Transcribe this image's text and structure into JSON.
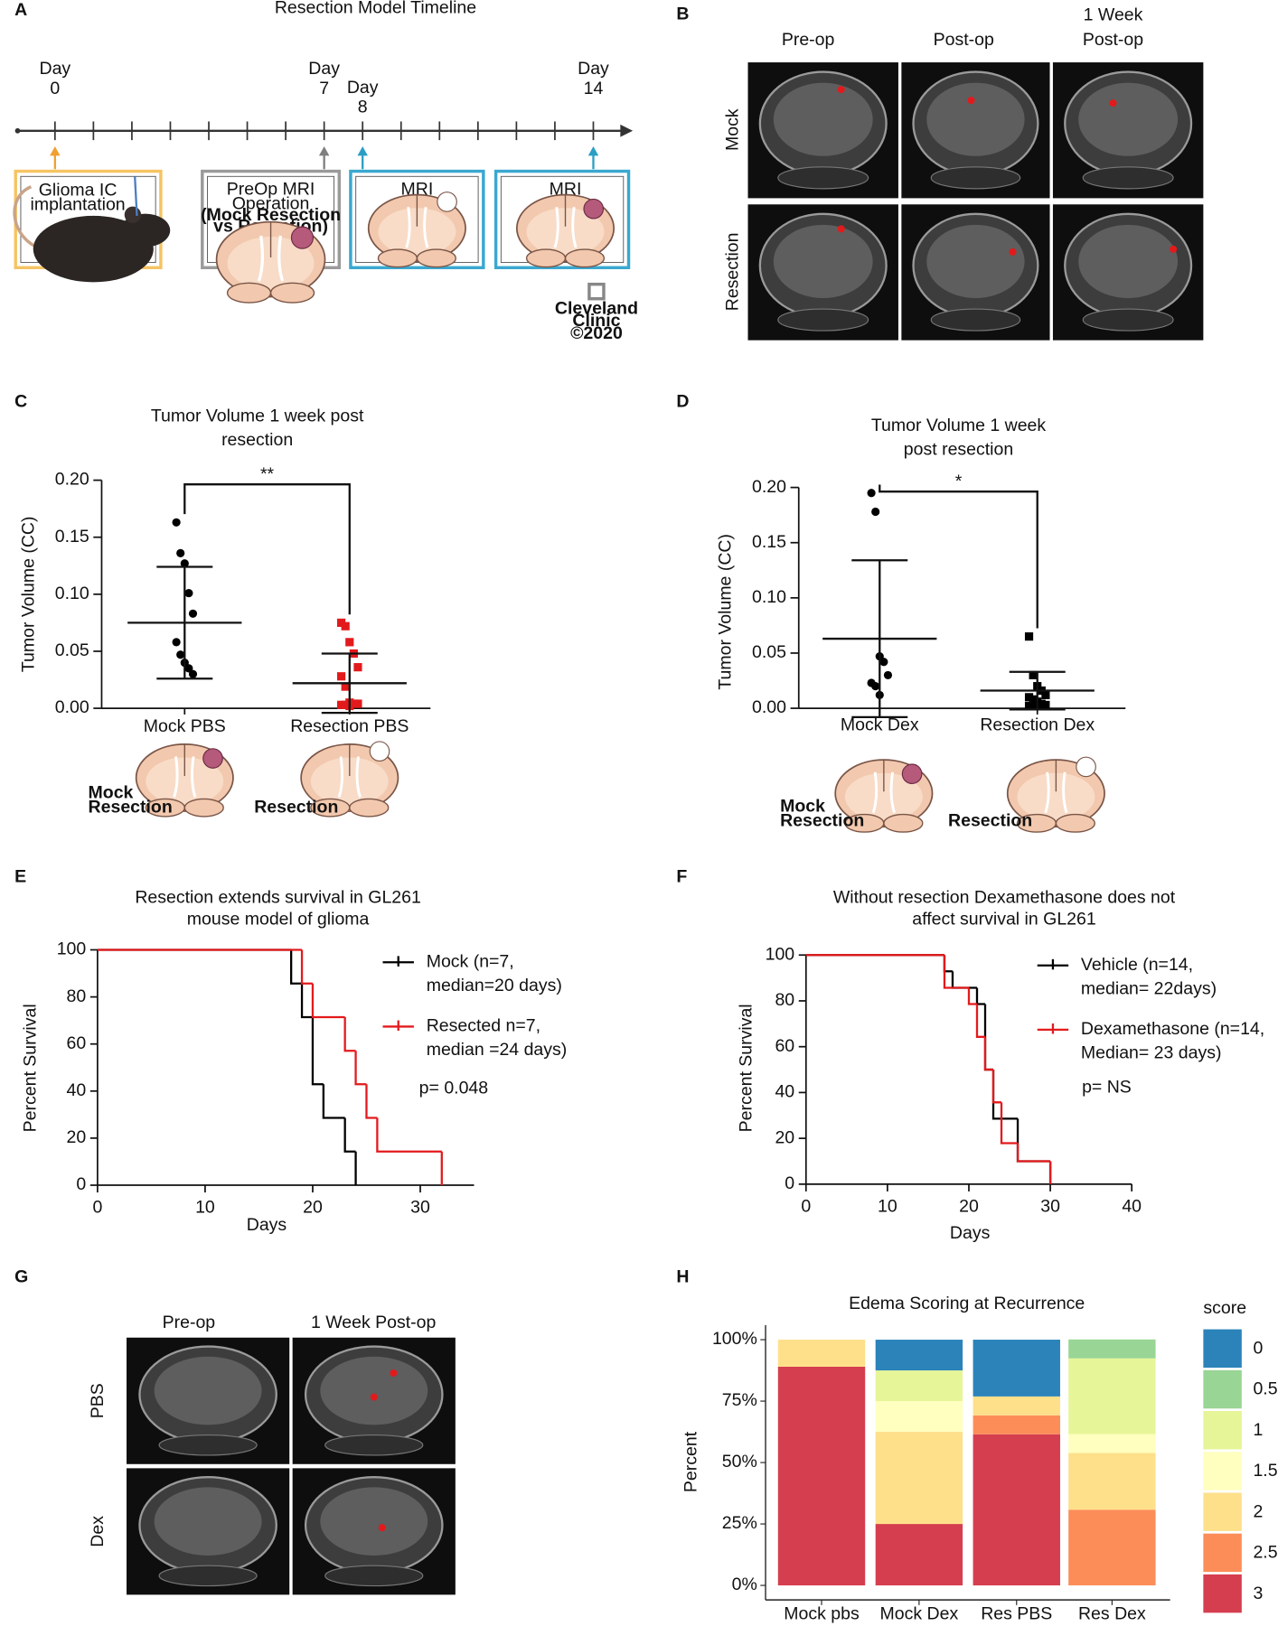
{
  "panel_labels": [
    "A",
    "B",
    "C",
    "D",
    "E",
    "F",
    "G",
    "H"
  ],
  "timeline": {
    "title": "Resection Model Timeline",
    "markers": [
      {
        "label": "Day",
        "day": 0
      },
      {
        "label": "Day",
        "day": 7
      },
      {
        "label": "Day",
        "day": 8
      },
      {
        "label": "Day",
        "day": 14
      }
    ],
    "boxes": [
      [
        "Glioma IC",
        "implantation"
      ],
      [
        "PreOp MRI",
        "Operation"
      ],
      [
        "MRI"
      ],
      [
        "MRI"
      ]
    ],
    "box_note": [
      "(Mock Resection",
      "vs Resection)"
    ],
    "credit": [
      "Cleveland",
      "Clinic",
      "©2020"
    ]
  },
  "mri_b": {
    "columns": [
      [
        "Pre-op"
      ],
      [
        "Post-op"
      ],
      [
        "1 Week",
        "Post-op"
      ]
    ],
    "rows": [
      "Mock",
      "Resection"
    ]
  },
  "mri_g": {
    "columns": [
      "Pre-op",
      "1 Week Post-op"
    ],
    "rows": [
      "PBS",
      "Dex"
    ]
  },
  "chart_data": [
    {
      "type": "dot",
      "title": [
        "Tumor Volume 1 week post",
        "resection"
      ],
      "y_label": "Tumor Volume (CC)",
      "categories": [
        "Mock PBS",
        "Resection PBS"
      ],
      "values": [
        [
          0.163,
          0.136,
          0.127,
          0.101,
          0.083,
          0.058,
          0.047,
          0.04,
          0.035,
          0.03
        ],
        [
          0.075,
          0.072,
          0.058,
          0.048,
          0.036,
          0.028,
          0.019,
          0.005,
          0.004,
          0.004,
          0.003,
          0.003,
          0.002
        ]
      ],
      "means": [
        0.075,
        0.022
      ],
      "errors": [
        0.049,
        0.026
      ],
      "colors": [
        "#000000",
        "#e31a1c"
      ],
      "markers": [
        "circle",
        "square"
      ],
      "significance": "**",
      "ylim": [
        0,
        0.2
      ],
      "yticks": [
        {
          "value": 0,
          "label": "0.00"
        },
        0.05,
        {
          "value": 0.1,
          "label": "0.10"
        },
        0.15,
        {
          "value": 0.2,
          "label": "0.20"
        }
      ],
      "illustration_labels": [
        [
          "Mock",
          "Resection"
        ],
        [
          "Resection"
        ]
      ]
    },
    {
      "type": "dot",
      "title": [
        "Tumor Volume 1 week",
        "post resection"
      ],
      "y_label": "Tumor Volume (CC)",
      "categories": [
        "Mock Dex",
        "Resection Dex"
      ],
      "values": [
        [
          0.195,
          0.178,
          0.047,
          0.042,
          0.03,
          0.023,
          0.02,
          0.012
        ],
        [
          0.065,
          0.03,
          0.02,
          0.016,
          0.012,
          0.01,
          0.008,
          0.006,
          0.004,
          0.003,
          0.002,
          0.002
        ]
      ],
      "means": [
        0.063,
        0.016
      ],
      "errors": [
        0.071,
        0.017
      ],
      "colors": [
        "#000000",
        "#000000"
      ],
      "markers": [
        "circle",
        "square"
      ],
      "significance": "*",
      "ylim": [
        0,
        0.2
      ],
      "yticks": [
        {
          "value": 0,
          "label": "0.00"
        },
        0.05,
        {
          "value": 0.1,
          "label": "0.10"
        },
        0.15,
        {
          "value": 0.2,
          "label": "0.20"
        }
      ],
      "illustration_labels": [
        [
          "Mock",
          "Resection"
        ],
        [
          "Resection"
        ]
      ]
    },
    {
      "type": "step",
      "title": [
        "Resection extends survival in GL261",
        "mouse model of glioma"
      ],
      "x_label": "Days",
      "y_label": "Percent Survival",
      "series": [
        {
          "name": [
            "Mock (n=7,",
            "median=20 days)"
          ],
          "color": "#000000",
          "x": [
            0,
            18,
            19,
            20,
            21,
            23,
            24
          ],
          "values": [
            100,
            85.7,
            71.4,
            42.9,
            28.6,
            14.3,
            0
          ]
        },
        {
          "name": [
            "Resected n=7,",
            "median =24 days)"
          ],
          "color": "#e31a1c",
          "x": [
            0,
            19,
            20,
            23,
            24,
            25,
            26,
            32
          ],
          "values": [
            100,
            85.7,
            71.4,
            57.1,
            42.9,
            28.6,
            14.3,
            0
          ]
        }
      ],
      "annotation": "p= 0.048",
      "xlim": [
        0,
        35
      ],
      "xticks": [
        0,
        10,
        20,
        30
      ],
      "ylim": [
        0,
        100
      ],
      "yticks": [
        0,
        20,
        40,
        60,
        80,
        100
      ]
    },
    {
      "type": "step",
      "title": [
        "Without resection Dexamethasone does not",
        "affect survival in GL261"
      ],
      "x_label": "Days",
      "y_label": "Percent Survival",
      "series": [
        {
          "name": [
            "Vehicle (n=14,",
            "median= 22days)"
          ],
          "color": "#000000",
          "x": [
            0,
            17,
            18,
            21,
            22,
            23,
            26,
            30
          ],
          "values": [
            100,
            92.9,
            85.7,
            78.6,
            50,
            28.6,
            10,
            0
          ]
        },
        {
          "name": [
            "Dexamethasone (n=14,",
            "Median= 23 days)"
          ],
          "color": "#e31a1c",
          "x": [
            0,
            17,
            20,
            21,
            22,
            23,
            24,
            26,
            30
          ],
          "values": [
            100,
            85.7,
            78.6,
            64.3,
            50,
            35.7,
            17.9,
            10,
            0
          ]
        }
      ],
      "annotation": "p= NS",
      "xlim": [
        0,
        40
      ],
      "xticks": [
        0,
        10,
        20,
        30,
        40
      ],
      "ylim": [
        0,
        100
      ],
      "yticks": [
        0,
        20,
        40,
        60,
        80,
        100
      ]
    },
    {
      "type": "stacked_bar",
      "title": "Edema Scoring at Recurrence",
      "y_label": "Percent",
      "legend_title": "score",
      "categories": [
        "Mock pbs",
        "Mock Dex",
        "Res PBS",
        "Res Dex"
      ],
      "series": [
        {
          "name": "0",
          "color": "#2b83ba",
          "values": [
            0,
            12.5,
            23.1,
            0
          ]
        },
        {
          "name": "0.5",
          "color": "#99d594",
          "values": [
            0,
            0,
            0,
            7.7
          ]
        },
        {
          "name": "1",
          "color": "#e6f598",
          "values": [
            0,
            12.5,
            0,
            30.8
          ]
        },
        {
          "name": "1.5",
          "color": "#ffffbf",
          "values": [
            0,
            12.5,
            0,
            7.7
          ]
        },
        {
          "name": "2",
          "color": "#fee08b",
          "values": [
            11,
            37.5,
            7.7,
            23.1
          ]
        },
        {
          "name": "2.5",
          "color": "#fc8d59",
          "values": [
            0,
            0,
            7.7,
            30.8
          ]
        },
        {
          "name": "3",
          "color": "#d53e4f",
          "values": [
            89,
            25,
            61.5,
            0
          ]
        }
      ],
      "ylim": [
        0,
        100
      ],
      "yticks": [
        {
          "value": 0,
          "label": "0%"
        },
        {
          "value": 25,
          "label": "25%"
        },
        {
          "value": 50,
          "label": "50%"
        },
        {
          "value": 75,
          "label": "75%"
        },
        {
          "value": 100,
          "label": "100%"
        }
      ]
    }
  ]
}
